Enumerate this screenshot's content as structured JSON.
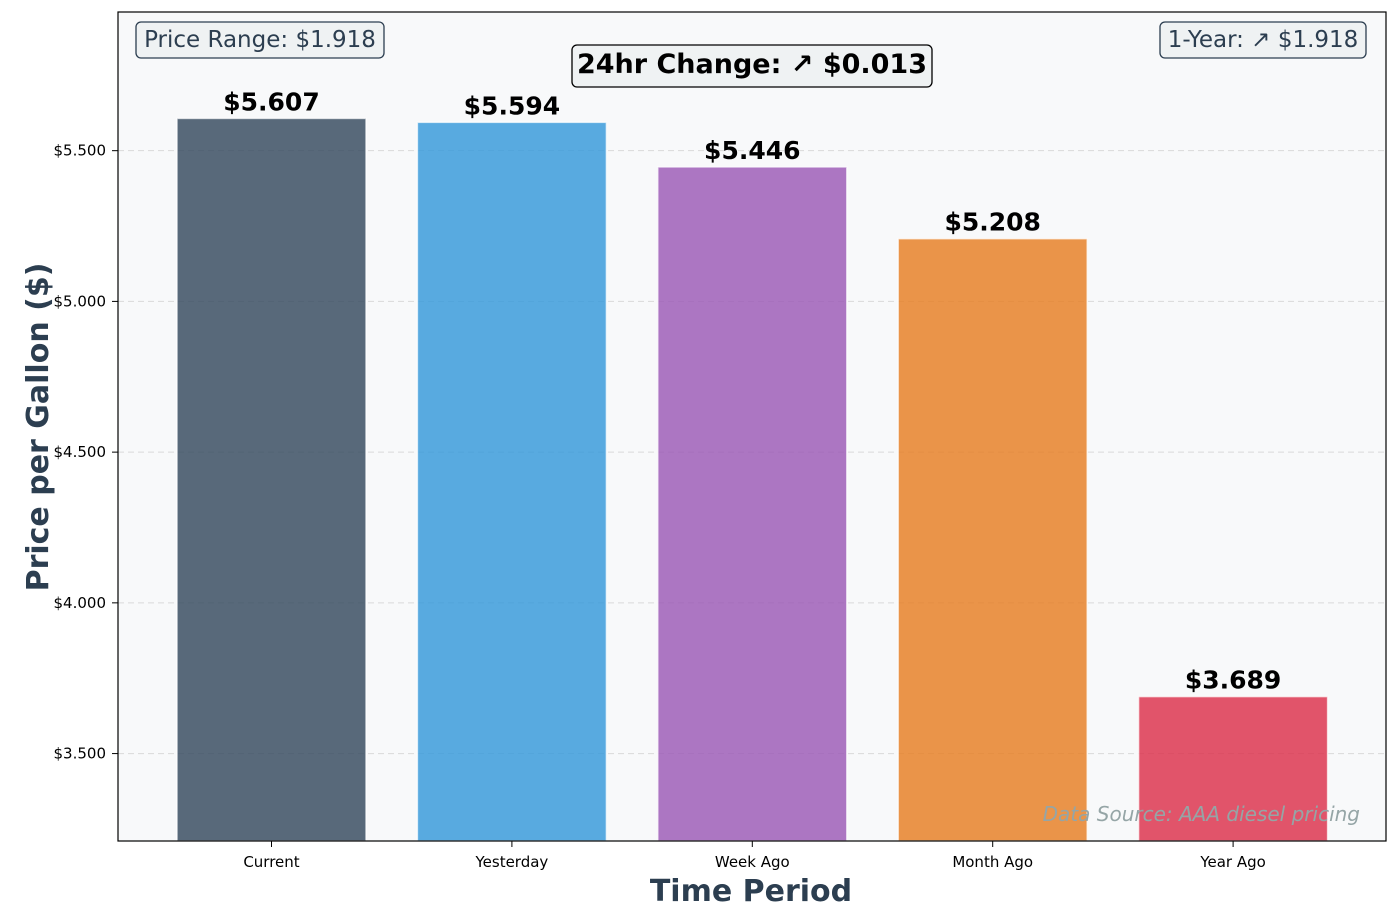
{
  "chart_data": {
    "type": "bar",
    "categories": [
      "Current",
      "Yesterday",
      "Week Ago",
      "Month Ago",
      "Year Ago"
    ],
    "values": [
      5.607,
      5.594,
      5.446,
      5.208,
      3.689
    ],
    "value_labels": [
      "$5.607",
      "$5.594",
      "$5.446",
      "$5.208",
      "$3.689"
    ],
    "bar_colors": [
      "#34495e",
      "#3498db",
      "#9b59b6",
      "#e67e22",
      "#dc2f4a"
    ],
    "xlabel": "Time Period",
    "ylabel": "Price per Gallon ($)",
    "ylim": [
      3.21,
      5.96
    ],
    "yticks": [
      3.5,
      4.0,
      4.5,
      5.0,
      5.5
    ],
    "ytick_labels": [
      "$3.500",
      "$4.000",
      "$4.500",
      "$5.000",
      "$5.500"
    ],
    "grid": "horizontal dashed",
    "background": "#f8f9fa",
    "annotations": {
      "price_range": "Price Range: $1.918",
      "one_year": "1-Year: ↗ $1.918",
      "change_24hr": "24hr Change: ↗ $0.013",
      "source": "Data Source: AAA diesel pricing"
    }
  }
}
